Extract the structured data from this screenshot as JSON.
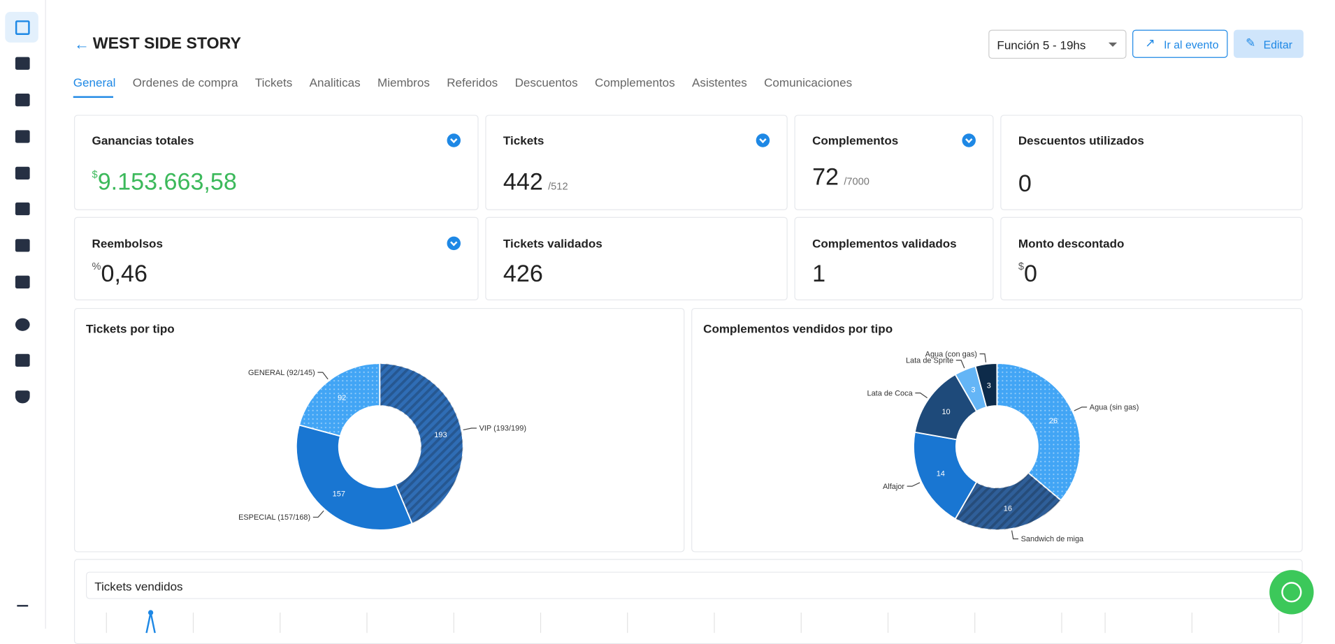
{
  "header": {
    "title": "WEST SIDE STORY",
    "select": "Función 5 - 19hs",
    "buttons": [
      "Ir al evento",
      "Editar"
    ]
  },
  "tabs": [
    "General",
    "Ordenes de compra",
    "Tickets",
    "Analiticas",
    "Miembros",
    "Referidos",
    "Descuentos",
    "Complementos",
    "Asistentes",
    "Comunicaciones"
  ],
  "cards": [
    {
      "title": "Ganancias totales",
      "prefix": "$",
      "value": "9.153.663,58"
    },
    {
      "title": "Tickets",
      "value": 442,
      "suffix": "/512"
    },
    {
      "title": "Complementos",
      "value": 72,
      "suffix": "/7000"
    },
    {
      "title": "Descuentos utilizados",
      "value": 0
    },
    {
      "title": "Reembolsos",
      "prefix": "%",
      "value": "0,46"
    },
    {
      "title": "Tickets validados",
      "value": 426
    },
    {
      "title": "Complementos validados",
      "value": 1
    },
    {
      "title": "Monto descontado",
      "prefix": "$",
      "value": 0
    }
  ],
  "charts": [
    {
      "type": "donut",
      "title": "Tickets por tipo",
      "categories": [
        "VIP (193/199)",
        "ESPECIAL (157/168)",
        "GENERAL (92/145)"
      ],
      "values": [
        193,
        157,
        92
      ],
      "colors": [
        "#2f6db5",
        "#1976d2",
        "#42a5f5"
      ],
      "patterns": [
        "stripes",
        null,
        "dots"
      ]
    },
    {
      "type": "donut",
      "title": "Complementos vendidos por tipo",
      "categories": [
        "Agua (sin gas)",
        "Sandwich de miga",
        "Alfajor",
        "Lata de Coca",
        "Lata de Sprite",
        "Agua (con gas)"
      ],
      "values": [
        26,
        16,
        14,
        10,
        3,
        3
      ],
      "colors": [
        "#42a5f5",
        "#2f5f99",
        "#1976d2",
        "#1e4a7a",
        "#64b5f6",
        "#0d2b4a"
      ],
      "patterns": [
        "dots",
        "stripes",
        null,
        null,
        null,
        null
      ]
    }
  ],
  "bottom": {
    "title": "Tickets vendidos"
  }
}
